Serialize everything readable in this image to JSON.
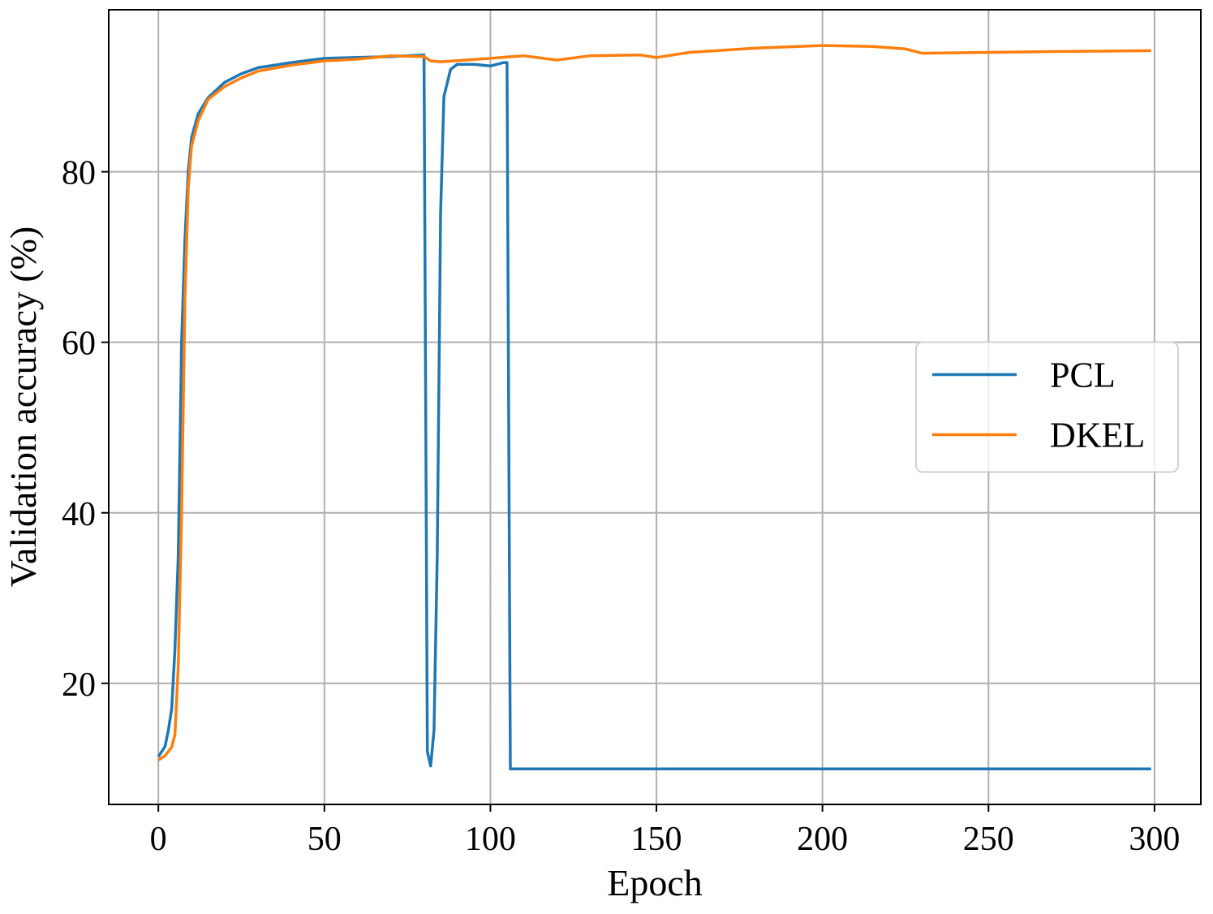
{
  "chart_data": {
    "type": "line",
    "x_label": "Epoch",
    "y_label": "Validation accuracy (%)",
    "xlim": [
      -14.95,
      313.95
    ],
    "ylim": [
      5.8,
      99.0
    ],
    "xticks": [
      0,
      50,
      100,
      150,
      200,
      250,
      300
    ],
    "yticks": [
      20,
      40,
      60,
      80
    ],
    "grid": true,
    "legend": "center right",
    "series": [
      {
        "name": "PCL",
        "color": "#1f77b4",
        "x": [
          0,
          1,
          2,
          3,
          4,
          5,
          6,
          7,
          8,
          9,
          10,
          12,
          15,
          20,
          25,
          30,
          40,
          50,
          60,
          70,
          80,
          81,
          82,
          83,
          84,
          85,
          86,
          88,
          90,
          95,
          100,
          104,
          105,
          106,
          299
        ],
        "values": [
          11.4,
          12,
          12.6,
          14.5,
          17,
          24,
          35,
          60,
          72,
          80,
          84,
          86.8,
          88.7,
          90.5,
          91.5,
          92.2,
          92.8,
          93.3,
          93.4,
          93.5,
          93.7,
          12,
          10.3,
          14.5,
          35,
          75,
          88.8,
          92,
          92.6,
          92.6,
          92.4,
          92.8,
          92.8,
          9.96,
          9.96
        ]
      },
      {
        "name": "DKEL",
        "color": "#ff7f0e",
        "x": [
          0,
          2,
          4,
          5,
          6,
          7,
          8,
          9,
          10,
          12,
          15,
          20,
          25,
          30,
          40,
          50,
          60,
          70,
          80,
          82,
          85,
          100,
          110,
          120,
          130,
          145,
          150,
          160,
          180,
          200,
          215,
          225,
          230,
          250,
          270,
          299
        ],
        "values": [
          11,
          11.5,
          12.5,
          14,
          22,
          40,
          65,
          78,
          83,
          86,
          88.5,
          90,
          91,
          91.8,
          92.5,
          93,
          93.2,
          93.6,
          93.5,
          93,
          92.9,
          93.3,
          93.6,
          93.1,
          93.6,
          93.7,
          93.4,
          94,
          94.5,
          94.8,
          94.7,
          94.4,
          93.9,
          94,
          94.1,
          94.2
        ]
      }
    ]
  }
}
